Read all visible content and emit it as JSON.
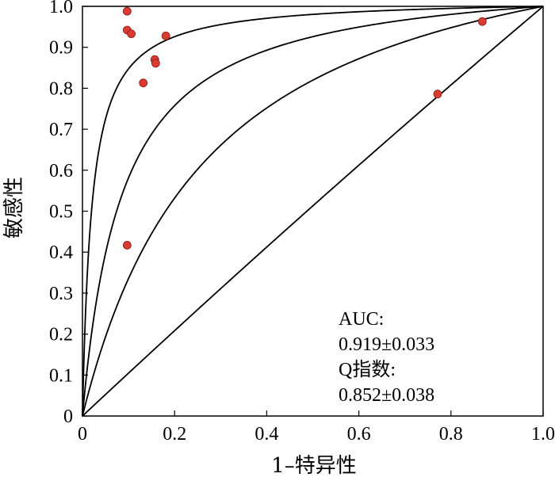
{
  "chart_data": {
    "type": "scatter",
    "xlabel": "1–特异性",
    "ylabel": "敏感性",
    "xlim": [
      0,
      1.0
    ],
    "ylim": [
      0,
      1.0
    ],
    "x_ticks": [
      "0",
      "0.2",
      "0.4",
      "0.6",
      "0.8",
      "1.0"
    ],
    "y_ticks": [
      "0",
      "0.1",
      "0.2",
      "0.3",
      "0.4",
      "0.5",
      "0.6",
      "0.7",
      "0.8",
      "0.9",
      "1.0"
    ],
    "grid": false,
    "point_color": "#d93a32",
    "points": [
      {
        "x": 0.097,
        "y": 0.988
      },
      {
        "x": 0.097,
        "y": 0.942
      },
      {
        "x": 0.106,
        "y": 0.933
      },
      {
        "x": 0.181,
        "y": 0.928
      },
      {
        "x": 0.157,
        "y": 0.87
      },
      {
        "x": 0.159,
        "y": 0.861
      },
      {
        "x": 0.132,
        "y": 0.813
      },
      {
        "x": 0.097,
        "y": 0.417
      },
      {
        "x": 0.771,
        "y": 0.786
      },
      {
        "x": 0.868,
        "y": 0.963
      }
    ],
    "curves": [
      {
        "b": 0.02
      },
      {
        "b": 0.08
      },
      {
        "b": 0.22
      },
      {
        "b": 0.95
      }
    ],
    "annotation": {
      "auc_label": "AUC:",
      "auc_value": "0.919±0.033",
      "q_label": "Q指数:",
      "q_value": "0.852±0.038"
    }
  }
}
